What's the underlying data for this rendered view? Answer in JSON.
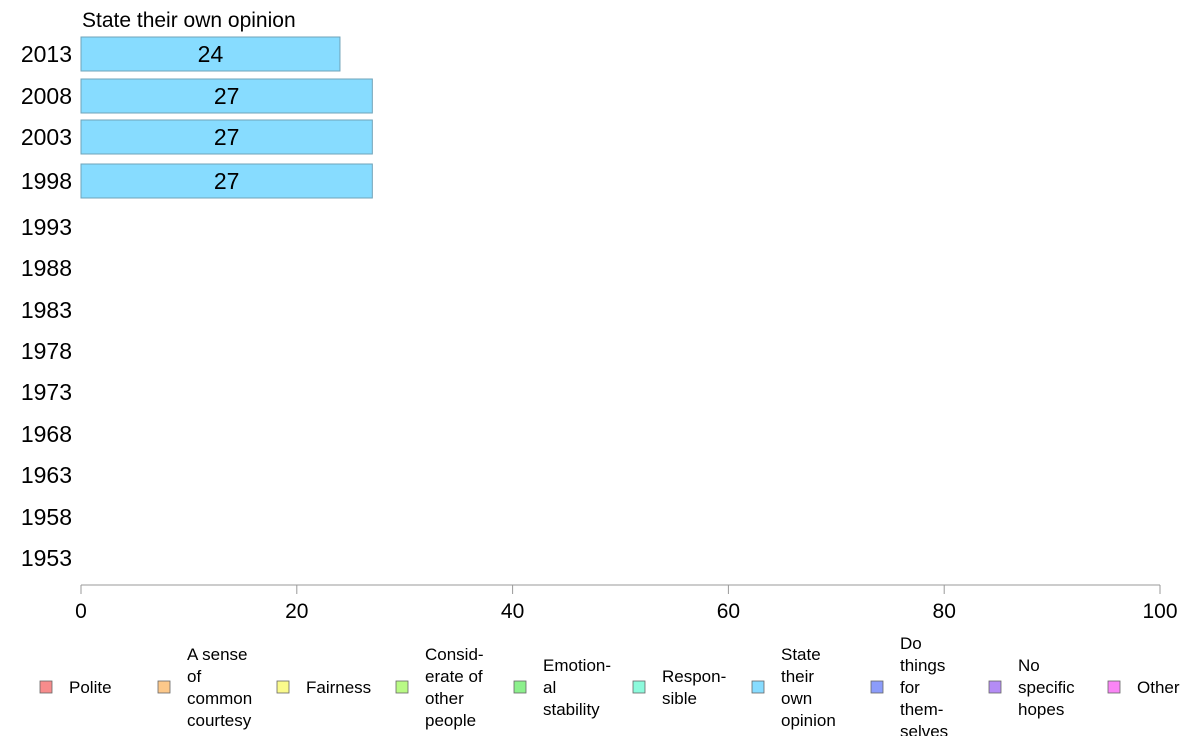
{
  "chart_data": {
    "type": "bar",
    "orientation": "horizontal",
    "title": "State their own opinion",
    "categories": [
      "2013",
      "2008",
      "2003",
      "1998",
      "1993",
      "1988",
      "1983",
      "1978",
      "1973",
      "1968",
      "1963",
      "1958",
      "1953"
    ],
    "series": [
      {
        "name": "State their own opinion",
        "values": [
          24,
          27,
          27,
          27,
          null,
          null,
          null,
          null,
          null,
          null,
          null,
          null,
          null
        ],
        "color": "#87dcff"
      }
    ],
    "xlim": [
      0,
      100
    ],
    "xticks": [
      "0",
      "20",
      "40",
      "60",
      "80",
      "100"
    ],
    "grid": false,
    "legend_position": "bottom",
    "legend": [
      {
        "label": "Polite",
        "color": "#f78c8c"
      },
      {
        "label": "A sense of common courtesy",
        "color": "#fcc88a"
      },
      {
        "label": "Fairness",
        "color": "#fafa8c"
      },
      {
        "label": "Consid-erate of other people",
        "color": "#b9fa85"
      },
      {
        "label": "Emotion-al stability",
        "color": "#8cf08c"
      },
      {
        "label": "Respon-sible",
        "color": "#8cfadc"
      },
      {
        "label": "State their own opinion",
        "color": "#87dcff"
      },
      {
        "label": "Do things for them-selves",
        "color": "#8c9cfa"
      },
      {
        "label": "No specific hopes",
        "color": "#b48cf5"
      },
      {
        "label": "Other",
        "color": "#fa85f5"
      }
    ]
  }
}
